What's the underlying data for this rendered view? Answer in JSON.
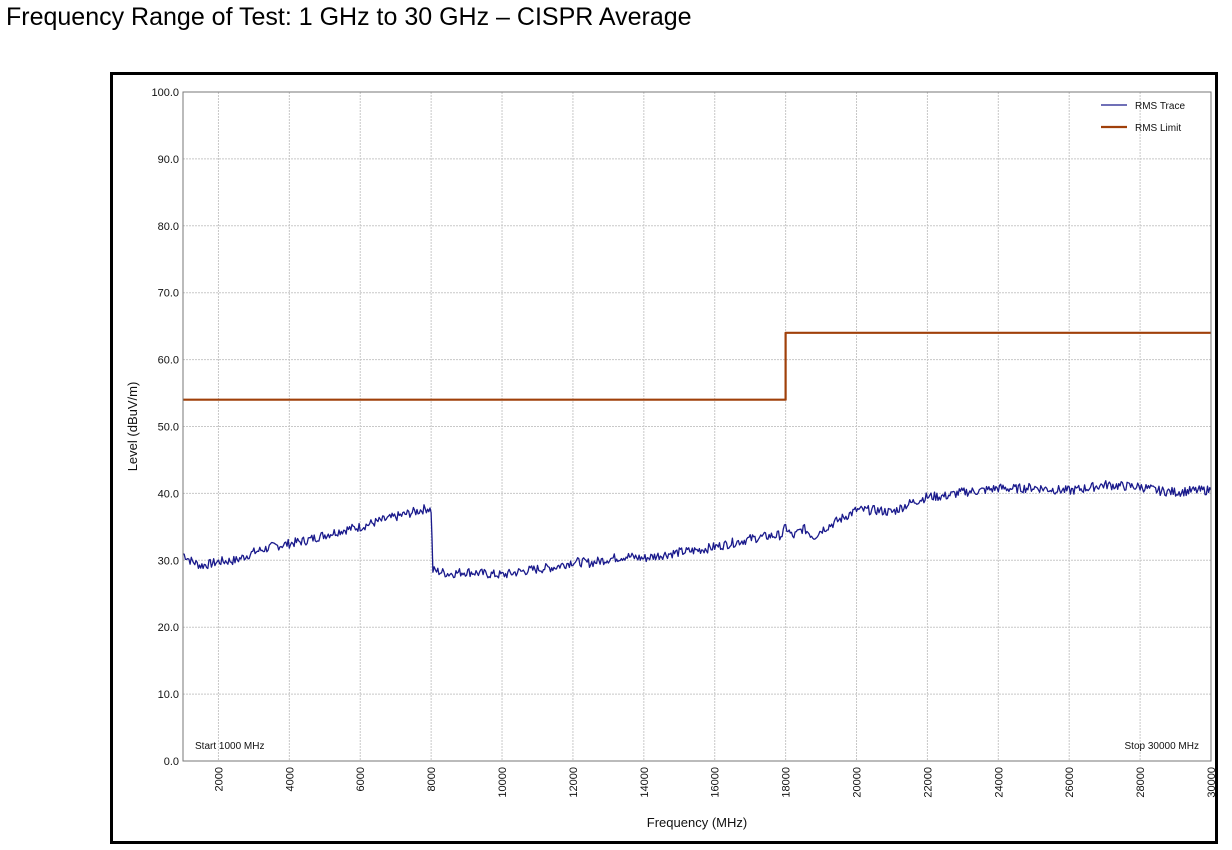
{
  "page": {
    "title": "Frequency Range of Test: 1 GHz to 30 GHz – CISPR Average"
  },
  "chart_data": {
    "type": "line",
    "title": "",
    "xlabel": "Frequency (MHz)",
    "ylabel": "Level (dBuV/m)",
    "xlim": [
      1000,
      30000
    ],
    "ylim": [
      0,
      100
    ],
    "x_ticks": [
      2000,
      4000,
      6000,
      8000,
      10000,
      12000,
      14000,
      16000,
      18000,
      20000,
      22000,
      24000,
      26000,
      28000,
      30000
    ],
    "x_tick_labels": [
      "2000",
      "4000",
      "6000",
      "8000",
      "10000",
      "12000",
      "14000",
      "16000",
      "18000",
      "20000",
      "22000",
      "24000",
      "26000",
      "28000",
      "30000"
    ],
    "y_ticks": [
      0,
      10,
      20,
      30,
      40,
      50,
      60,
      70,
      80,
      90,
      100
    ],
    "y_tick_labels": [
      "0.0",
      "10.0",
      "20.0",
      "30.0",
      "40.0",
      "50.0",
      "60.0",
      "70.0",
      "80.0",
      "90.0",
      "100.0"
    ],
    "grid": true,
    "legend_position": "top-right",
    "annotations": {
      "start": "Start 1000 MHz",
      "stop": "Stop 30000 MHz"
    },
    "series": [
      {
        "name": "RMS Trace",
        "color": "#1a1a8c",
        "x": [
          1000,
          1200,
          1500,
          1800,
          2000,
          2500,
          3000,
          3500,
          4000,
          4500,
          5000,
          5500,
          6000,
          6500,
          7000,
          7500,
          7900,
          8000,
          8050,
          8500,
          9000,
          9500,
          10000,
          10500,
          11000,
          11500,
          12000,
          12500,
          13000,
          13500,
          14000,
          14500,
          15000,
          15500,
          16000,
          16500,
          17000,
          17500,
          17900,
          18000,
          18200,
          18500,
          18800,
          19000,
          19500,
          20000,
          20500,
          21000,
          21500,
          22000,
          22500,
          23000,
          23500,
          24000,
          24500,
          25000,
          25500,
          26000,
          26500,
          27000,
          27500,
          28000,
          28500,
          29000,
          29500,
          30000
        ],
        "values": [
          31.0,
          30.0,
          29.2,
          29.5,
          29.8,
          30.0,
          31.2,
          32.0,
          32.5,
          33.0,
          33.8,
          34.5,
          35.0,
          35.8,
          36.5,
          37.2,
          37.8,
          37.5,
          28.5,
          28.0,
          28.3,
          28.0,
          27.8,
          28.3,
          28.7,
          29.0,
          29.8,
          29.6,
          30.2,
          30.6,
          30.3,
          30.8,
          31.2,
          31.5,
          32.0,
          32.6,
          33.2,
          33.6,
          33.8,
          35.0,
          33.5,
          34.8,
          33.5,
          34.5,
          36.0,
          37.5,
          37.5,
          37.2,
          38.5,
          39.5,
          39.6,
          40.2,
          40.4,
          40.8,
          40.7,
          40.9,
          40.6,
          40.4,
          40.8,
          41.3,
          41.1,
          41.0,
          40.4,
          40.2,
          40.4,
          40.5
        ]
      },
      {
        "name": "RMS Limit",
        "color": "#a0400a",
        "x": [
          1000,
          18000,
          18000,
          30000
        ],
        "values": [
          54,
          54,
          64,
          64
        ]
      }
    ]
  }
}
